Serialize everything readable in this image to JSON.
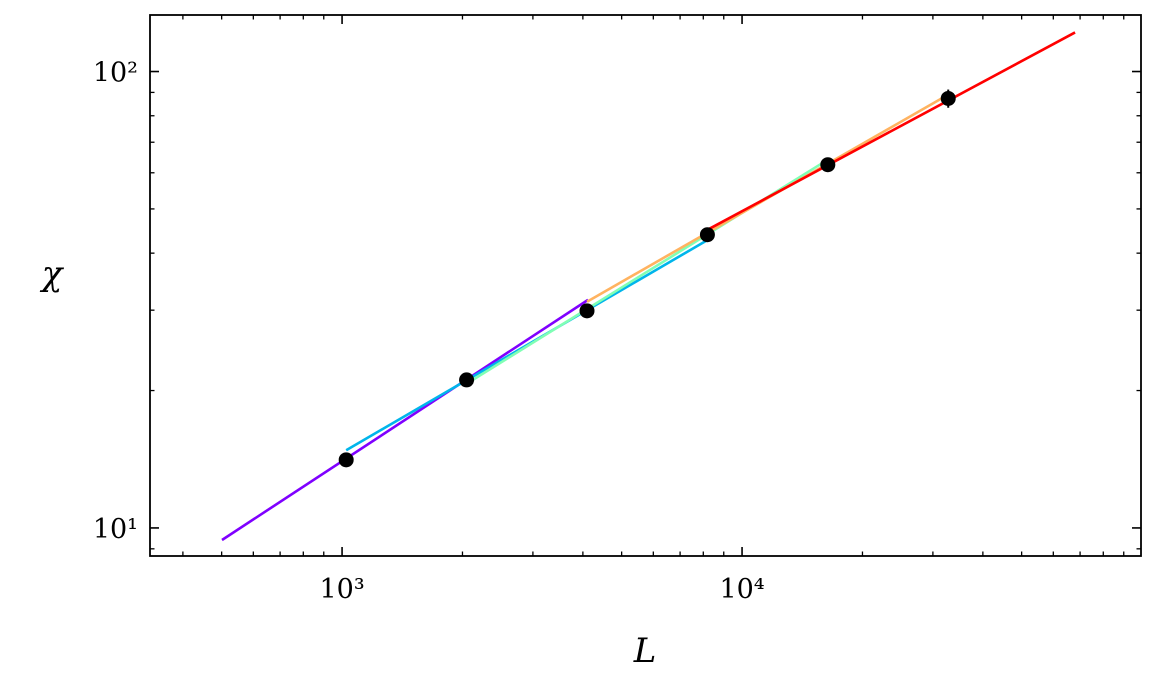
{
  "chart_data": {
    "type": "line",
    "x_label": "L",
    "y_label": "χ",
    "xscale": "log",
    "yscale": "log",
    "xlim": [
      331,
      99400
    ],
    "ylim": [
      8.68,
      133
    ],
    "xticks": [
      {
        "value": 1000,
        "label": "10³"
      },
      {
        "value": 10000,
        "label": "10⁴"
      }
    ],
    "yticks": [
      {
        "value": 10,
        "label": "10¹"
      },
      {
        "value": 100,
        "label": "10²"
      }
    ],
    "series": [
      {
        "color": "#7f00ff",
        "x": [
          501,
          4120
        ],
        "values": [
          9.41,
          31.6
        ]
      },
      {
        "color": "#00b5eb",
        "x": [
          1024,
          8220
        ],
        "values": [
          14.8,
          42.8
        ]
      },
      {
        "color": "#80ffb4",
        "x": [
          2048,
          16384
        ],
        "values": [
          20.7,
          64.1
        ]
      },
      {
        "color": "#ffb360",
        "x": [
          4096,
          32768
        ],
        "values": [
          31.3,
          89.0
        ]
      },
      {
        "color": "#ff0000",
        "x": [
          8192,
          68000
        ],
        "values": [
          45.0,
          121.8
        ]
      }
    ],
    "scatter": {
      "color": "#000000",
      "x": [
        1024,
        2048,
        4096,
        8192,
        16384,
        32768
      ],
      "values": [
        14.1,
        21.1,
        29.9,
        43.9,
        62.5,
        87.3
      ],
      "errors": [
        0.3,
        0.3,
        0.4,
        0.6,
        1.5,
        4
      ]
    }
  }
}
